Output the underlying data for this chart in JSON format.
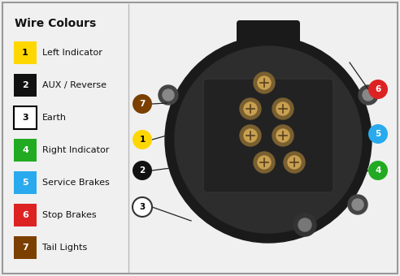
{
  "title": "Wire Colours",
  "background_color": "#f0f0f0",
  "legend_items": [
    {
      "num": "1",
      "label": "Left Indicator",
      "bg": "#FFD700",
      "fg": "#000000",
      "border": null
    },
    {
      "num": "2",
      "label": "AUX / Reverse",
      "bg": "#111111",
      "fg": "#ffffff",
      "border": null
    },
    {
      "num": "3",
      "label": "Earth",
      "bg": "#ffffff",
      "fg": "#000000",
      "border": "#000000"
    },
    {
      "num": "4",
      "label": "Right Indicator",
      "bg": "#22aa22",
      "fg": "#ffffff",
      "border": null
    },
    {
      "num": "5",
      "label": "Service Brakes",
      "bg": "#29aaee",
      "fg": "#ffffff",
      "border": null
    },
    {
      "num": "6",
      "label": "Stop Brakes",
      "bg": "#dd2222",
      "fg": "#ffffff",
      "border": null
    },
    {
      "num": "7",
      "label": "Tail Lights",
      "bg": "#7B3F00",
      "fg": "#ffffff",
      "border": null
    }
  ],
  "pin_colors": {
    "1": "#FFD700",
    "2": "#111111",
    "3": "#ffffff",
    "4": "#22aa22",
    "5": "#29aaee",
    "6": "#dd2222",
    "7": "#7B3F00"
  },
  "pin_fg": {
    "1": "#000000",
    "2": "#ffffff",
    "3": "#000000",
    "4": "#ffffff",
    "5": "#ffffff",
    "6": "#ffffff",
    "7": "#ffffff"
  },
  "pin_border": {
    "1": null,
    "2": null,
    "3": "#333333",
    "4": null,
    "5": null,
    "6": null,
    "7": null
  }
}
